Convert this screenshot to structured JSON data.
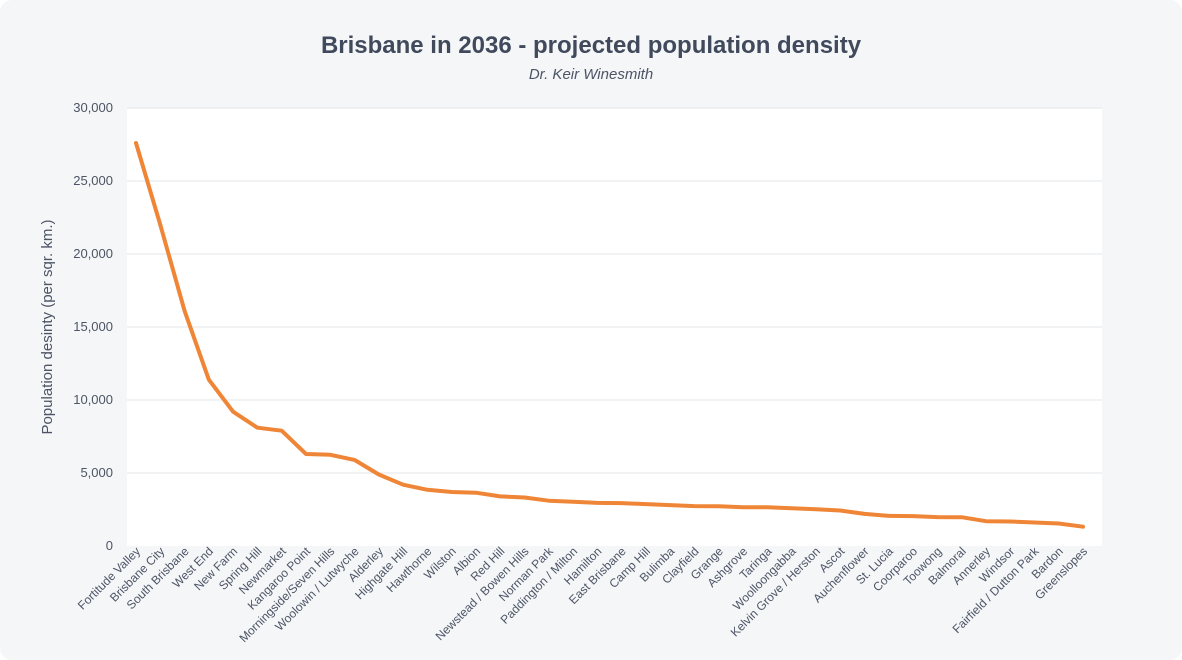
{
  "chart_data": {
    "type": "line",
    "title": "Brisbane in 2036 - projected population density",
    "subtitle": "Dr. Keir Winesmith",
    "xlabel": "",
    "ylabel": "Population desinty (per  sqr. km.)",
    "ylim": [
      0,
      30000
    ],
    "yticks": [
      0,
      5000,
      10000,
      15000,
      20000,
      25000,
      30000
    ],
    "ytick_labels": [
      "0",
      "5,000",
      "10,000",
      "15,000",
      "20,000",
      "25,000",
      "30,000"
    ],
    "grid": true,
    "legend": "none",
    "line_color": "#ef8536",
    "categories": [
      "Fortitude Valley",
      "Brisbane City",
      "South Brisbane",
      "West End",
      "New Farm",
      "Spring Hill",
      "Newmarket",
      "Kangaroo Point",
      "Morningside/Seven Hills",
      "Woolowin / Lutwyche",
      "Alderley",
      "Highgate Hill",
      "Hawthorne",
      "Wilston",
      "Albion",
      "Red Hill",
      "Newstead / Bowen Hills",
      "Norman Park",
      "Paddington / Milton",
      "Hamilton",
      "East Brisbane",
      "Camp Hill",
      "Bulimba",
      "Clayfield",
      "Grange",
      "Ashgrove",
      "Taringa",
      "Woolloongabba",
      "Kelvin Grove / Herston",
      "Ascot",
      "Auchenflower",
      "St. Lucia",
      "Coorparoo",
      "Toowong",
      "Balmoral",
      "Annerley",
      "Windsor",
      "Fairfield / Dutton Park",
      "Bardon",
      "Greenslopes"
    ],
    "series": [
      {
        "name": "Population density",
        "values": [
          27600,
          22000,
          16100,
          11400,
          9200,
          8100,
          7900,
          6300,
          6250,
          5900,
          4900,
          4200,
          3850,
          3700,
          3650,
          3400,
          3320,
          3100,
          3030,
          2950,
          2940,
          2870,
          2800,
          2730,
          2720,
          2650,
          2650,
          2580,
          2520,
          2430,
          2200,
          2060,
          2050,
          1980,
          1970,
          1700,
          1680,
          1610,
          1540,
          1320
        ]
      }
    ]
  }
}
